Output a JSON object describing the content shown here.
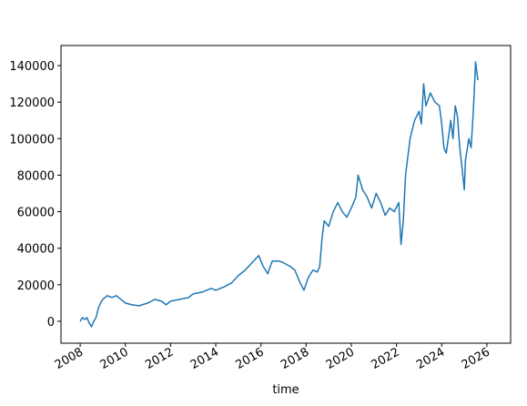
{
  "chart_data": {
    "type": "line",
    "x_label": "time",
    "xlim": [
      2007.15,
      2027.05
    ],
    "xticks": [
      2008,
      2010,
      2012,
      2014,
      2016,
      2018,
      2020,
      2022,
      2024,
      2026
    ],
    "ylim": [
      -12000,
      151000
    ],
    "yticks": [
      0,
      20000,
      40000,
      60000,
      80000,
      100000,
      120000,
      140000
    ],
    "grid": false,
    "series": [
      {
        "color": "#1f77b4",
        "x": [
          2008.0,
          2008.1,
          2008.2,
          2008.3,
          2008.4,
          2008.5,
          2008.6,
          2008.7,
          2008.8,
          2008.9,
          2009.0,
          2009.2,
          2009.4,
          2009.6,
          2009.8,
          2010.0,
          2010.3,
          2010.6,
          2011.0,
          2011.3,
          2011.6,
          2011.8,
          2012.0,
          2012.4,
          2012.8,
          2013.0,
          2013.4,
          2013.8,
          2014.0,
          2014.4,
          2014.7,
          2015.0,
          2015.3,
          2015.6,
          2015.9,
          2016.1,
          2016.3,
          2016.5,
          2016.8,
          2017.0,
          2017.3,
          2017.5,
          2017.7,
          2017.9,
          2018.1,
          2018.3,
          2018.5,
          2018.6,
          2018.7,
          2018.8,
          2019.0,
          2019.2,
          2019.4,
          2019.6,
          2019.8,
          2020.0,
          2020.2,
          2020.3,
          2020.5,
          2020.7,
          2020.9,
          2021.1,
          2021.3,
          2021.5,
          2021.7,
          2021.9,
          2022.1,
          2022.2,
          2022.3,
          2022.4,
          2022.6,
          2022.8,
          2023.0,
          2023.1,
          2023.2,
          2023.3,
          2023.5,
          2023.7,
          2023.9,
          2024.0,
          2024.1,
          2024.2,
          2024.4,
          2024.5,
          2024.6,
          2024.7,
          2024.8,
          2024.9,
          2025.0,
          2025.05,
          2025.2,
          2025.3,
          2025.4,
          2025.5,
          2025.6
        ],
        "values": [
          0,
          2000,
          1000,
          2000,
          -1000,
          -3000,
          0,
          2000,
          7000,
          10000,
          12000,
          14000,
          13000,
          14000,
          12000,
          10000,
          9000,
          8500,
          10000,
          12000,
          11000,
          9000,
          11000,
          12000,
          13000,
          15000,
          16000,
          18000,
          17000,
          19000,
          21000,
          25000,
          28000,
          32000,
          36000,
          30000,
          26000,
          33000,
          33000,
          32000,
          30000,
          28000,
          22000,
          17000,
          24000,
          28000,
          27000,
          30000,
          45000,
          55000,
          52000,
          60000,
          65000,
          60000,
          57000,
          62000,
          68000,
          80000,
          72000,
          68000,
          62000,
          70000,
          65000,
          58000,
          62000,
          60000,
          65000,
          42000,
          55000,
          80000,
          100000,
          110000,
          115000,
          108000,
          130000,
          118000,
          125000,
          120000,
          118000,
          108000,
          95000,
          92000,
          110000,
          100000,
          118000,
          112000,
          95000,
          84000,
          72000,
          88000,
          100000,
          95000,
          115000,
          142000,
          132000
        ]
      }
    ]
  }
}
